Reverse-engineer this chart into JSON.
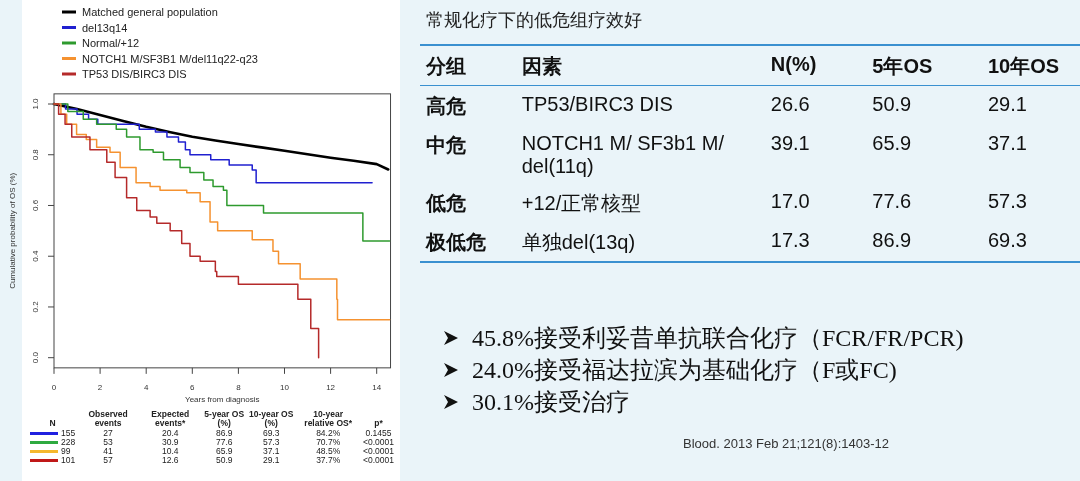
{
  "chart_data": [
    {
      "type": "step",
      "legend": "top left",
      "xlabel": "Years from diagnosis",
      "ylabel": "Cumulative probability of OS (%)",
      "xlim": [
        0,
        14.6
      ],
      "xticks": [
        0,
        2,
        4,
        6,
        8,
        10,
        12,
        14
      ],
      "ylim": [
        -0.04,
        1.04
      ],
      "yticks": [
        {
          "value": 0,
          "label": "0.0"
        },
        {
          "value": 0.2,
          "label": "0.2"
        },
        {
          "value": 0.4,
          "label": "0.4"
        },
        {
          "value": 0.6,
          "label": "0.6"
        },
        {
          "value": 0.8,
          "label": "0.8"
        },
        {
          "value": 1,
          "label": "1.0"
        }
      ],
      "series": [
        {
          "name": "Matched general population",
          "type": "line",
          "color": "#000000",
          "x": [
            0,
            1,
            2,
            3,
            4,
            5,
            6,
            7,
            8,
            9,
            10,
            11,
            12,
            13,
            14,
            14.5
          ],
          "values": [
            1.0,
            0.98,
            0.957,
            0.933,
            0.91,
            0.89,
            0.871,
            0.856,
            0.842,
            0.829,
            0.816,
            0.802,
            0.788,
            0.776,
            0.763,
            0.742
          ]
        },
        {
          "name": "del13q14",
          "color": "#2020d0",
          "x": [
            0,
            0.5,
            1.0,
            1.5,
            1.9,
            3.7,
            4.4,
            4.9,
            5.4,
            5.7,
            5.9,
            6.8,
            7.6,
            8.6,
            8.77,
            13.8
          ],
          "values": [
            1.0,
            0.98,
            0.96,
            0.94,
            0.92,
            0.9,
            0.89,
            0.87,
            0.85,
            0.82,
            0.8,
            0.78,
            0.76,
            0.74,
            0.69,
            0.69
          ]
        },
        {
          "name": "Normal/+12",
          "color": "#2e9a2e",
          "x": [
            0,
            0.6,
            1.27,
            1.85,
            2.7,
            3.15,
            3.73,
            4.3,
            4.75,
            5.47,
            5.9,
            6.5,
            6.9,
            7.35,
            7.5,
            9.09,
            13.4,
            14.56
          ],
          "values": [
            1.0,
            0.97,
            0.94,
            0.92,
            0.9,
            0.87,
            0.82,
            0.81,
            0.78,
            0.75,
            0.73,
            0.7,
            0.675,
            0.66,
            0.6,
            0.57,
            0.46,
            0.46
          ]
        },
        {
          "name": "NOTCH1 M/SF3B1 M/del11q22-q23",
          "color": "#f59230",
          "x": [
            0,
            0.3,
            0.55,
            0.98,
            1.4,
            1.85,
            2.43,
            2.87,
            3.56,
            4.17,
            4.6,
            5.76,
            6.34,
            6.77,
            7.1,
            8.6,
            9.5,
            9.74,
            10.68,
            12.27,
            12.3,
            14.56
          ],
          "values": [
            1.0,
            0.96,
            0.92,
            0.88,
            0.86,
            0.83,
            0.81,
            0.75,
            0.69,
            0.675,
            0.66,
            0.65,
            0.615,
            0.535,
            0.5,
            0.465,
            0.42,
            0.37,
            0.31,
            0.23,
            0.15,
            0.15
          ]
        },
        {
          "name": "TP53 DIS/BIRC3 DIS",
          "color": "#b52a2a",
          "x": [
            0,
            0.2,
            0.48,
            0.77,
            1.56,
            2.29,
            2.65,
            3.15,
            3.59,
            4.17,
            4.46,
            5.04,
            5.54,
            5.9,
            6.34,
            7.0,
            7.06,
            8.0,
            10.58,
            11.14,
            11.48
          ],
          "values": [
            1.0,
            0.96,
            0.92,
            0.87,
            0.82,
            0.77,
            0.71,
            0.63,
            0.58,
            0.555,
            0.53,
            0.5,
            0.45,
            0.4,
            0.38,
            0.34,
            0.32,
            0.29,
            0.23,
            0.115,
            0.0
          ]
        }
      ]
    },
    {
      "type": "other",
      "colors": [
        "#2020e0",
        "#2eaa40",
        "#f5b82e",
        "#c01818"
      ],
      "annotations": [
        "N",
        "Observed events",
        "Expected events*",
        "5-year OS (%)",
        "10-year OS (%)",
        "10-year relative OS*",
        "p*",
        "155",
        "27",
        "20.4",
        "86.9",
        "69.3",
        "84.2%",
        "0.1455",
        "228",
        "53",
        "30.9",
        "77.6",
        "57.3",
        "70.7%",
        "<0.0001",
        "99",
        "41",
        "10.4",
        "65.9",
        "37.1",
        "48.5%",
        "<0.0001",
        "101",
        "57",
        "12.6",
        "50.9",
        "29.1",
        "37.7%",
        "<0.0001"
      ]
    },
    {
      "type": "other",
      "title": "常规化疗下的低危组疗效好",
      "annotations": [
        "分组",
        "因素",
        "N(%)",
        "5年OS",
        "10年OS",
        "高危",
        "TP53/BIRC3 DIS",
        "26.6",
        "50.9",
        "29.1",
        "中危",
        "NOTCH1 M/ SF3b1 M/ del(11q)",
        "39.1",
        "65.9",
        "37.1",
        "低危",
        "+12/正常核型",
        "17.0",
        "77.6",
        "57.3",
        "极低危",
        "单独del(13q)",
        "17.3",
        "86.9",
        "69.3",
        "45.8%接受利妥昔单抗联合化疗（FCR/FR/PCR)",
        "24.0%接受福达拉滨为基础化疗（F或FC)",
        "30.1%接受治疗",
        "Blood. 2013 Feb 21;121(8):1403-12"
      ]
    }
  ]
}
